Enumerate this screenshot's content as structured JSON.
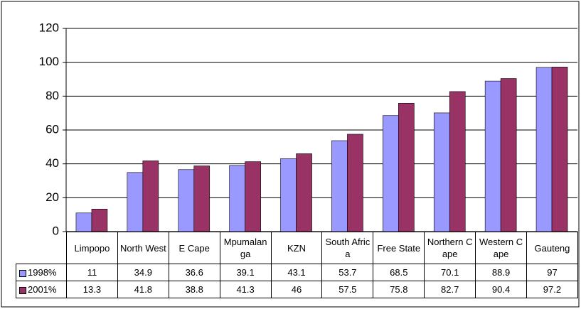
{
  "chart_data": {
    "type": "bar",
    "categories": [
      "Limpopo",
      "North West",
      "E Cape",
      "Mpumalanga",
      "KZN",
      "South Africa",
      "Free State",
      "Northern Cape",
      "Western Cape",
      "Gauteng"
    ],
    "series": [
      {
        "name": "1998%",
        "color": "#9999ff",
        "values": [
          11,
          34.9,
          36.6,
          39.1,
          43.1,
          53.7,
          68.5,
          70.1,
          88.9,
          97
        ]
      },
      {
        "name": "2001%",
        "color": "#993366",
        "values": [
          13.3,
          41.8,
          38.8,
          41.3,
          46,
          57.5,
          75.8,
          82.7,
          90.4,
          97.2
        ]
      }
    ],
    "ylim": [
      0,
      120
    ],
    "yticks": [
      0,
      20,
      40,
      60,
      80,
      100,
      120
    ],
    "grid": true
  }
}
